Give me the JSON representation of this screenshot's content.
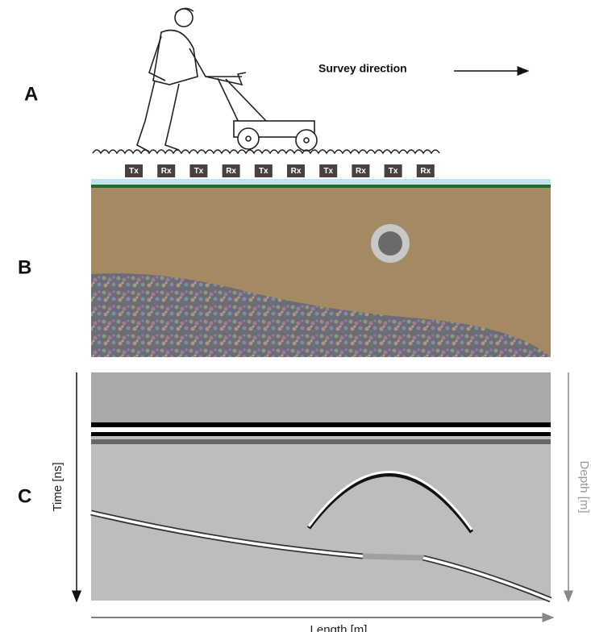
{
  "panel_labels": [
    "A",
    "B",
    "C"
  ],
  "survey_direction": "Survey direction",
  "antennas": [
    "Tx",
    "Rx",
    "Tx",
    "Rx",
    "Tx",
    "Rx",
    "Tx",
    "Rx",
    "Tx",
    "Rx"
  ],
  "time_axis": "Time [ns]",
  "depth_axis": "Depth [m]",
  "length_axis": "Length [m]"
}
